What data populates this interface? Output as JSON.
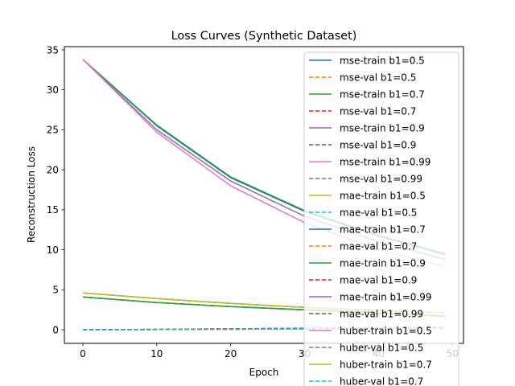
{
  "chart_data": {
    "type": "line",
    "title": "Loss Curves (Synthetic Dataset)",
    "xlabel": "Epoch",
    "ylabel": "Reconstruction Loss",
    "xlim": [
      -2.5,
      51.5
    ],
    "ylim": [
      -1.7,
      35.4
    ],
    "xticks": [
      0,
      10,
      20,
      30,
      40,
      50
    ],
    "yticks": [
      0,
      5,
      10,
      15,
      20,
      25,
      30,
      35
    ],
    "grid": false,
    "legend_position": "top-right",
    "series": [
      {
        "name": "mse-train b1=0.5",
        "color": "#1f77b4",
        "style": "solid",
        "x": [
          0,
          10,
          20,
          30,
          40,
          49
        ],
        "values": [
          33.8,
          25.6,
          19.1,
          14.9,
          11.8,
          9.5
        ]
      },
      {
        "name": "mse-val b1=0.5",
        "color": "#ff7f0e",
        "style": "dashed",
        "x": [
          0,
          10,
          20,
          30,
          40,
          49
        ],
        "values": [
          0.0,
          0.05,
          0.12,
          0.2,
          0.28,
          0.33
        ]
      },
      {
        "name": "mse-train b1=0.7",
        "color": "#2ca02c",
        "style": "solid",
        "x": [
          0,
          10,
          20,
          30,
          40,
          49
        ],
        "values": [
          33.8,
          25.5,
          19.0,
          14.8,
          11.7,
          9.4
        ]
      },
      {
        "name": "mse-val b1=0.7",
        "color": "#d62728",
        "style": "dashed",
        "x": [
          0,
          10,
          20,
          30,
          40,
          49
        ],
        "values": [
          0.0,
          0.05,
          0.12,
          0.2,
          0.27,
          0.32
        ]
      },
      {
        "name": "mse-train b1=0.9",
        "color": "#9467bd",
        "style": "solid",
        "x": [
          0,
          10,
          20,
          30,
          40,
          49
        ],
        "values": [
          33.8,
          25.0,
          18.6,
          14.2,
          11.0,
          8.8
        ]
      },
      {
        "name": "mse-val b1=0.9",
        "color": "#8c564b",
        "style": "dashed",
        "x": [
          0,
          10,
          20,
          30,
          40,
          49
        ],
        "values": [
          0.0,
          0.05,
          0.11,
          0.19,
          0.26,
          0.31
        ]
      },
      {
        "name": "mse-train b1=0.99",
        "color": "#e377c2",
        "style": "solid",
        "x": [
          0,
          10,
          20,
          30,
          40,
          49
        ],
        "values": [
          33.8,
          24.7,
          18.0,
          13.4,
          10.0,
          7.9
        ]
      },
      {
        "name": "mse-val b1=0.99",
        "color": "#7f7f7f",
        "style": "dashed",
        "x": [
          0,
          10,
          20,
          30,
          40,
          49
        ],
        "values": [
          0.0,
          0.05,
          0.11,
          0.18,
          0.25,
          0.3
        ]
      },
      {
        "name": "mae-train b1=0.5",
        "color": "#bcbd22",
        "style": "solid",
        "x": [
          0,
          10,
          20,
          30,
          40,
          49
        ],
        "values": [
          4.1,
          3.4,
          2.9,
          2.5,
          2.1,
          1.7
        ]
      },
      {
        "name": "mae-val b1=0.5",
        "color": "#17becf",
        "style": "dashed",
        "x": [
          0,
          10,
          20,
          30,
          40,
          49
        ],
        "values": [
          0.0,
          0.03,
          0.07,
          0.12,
          0.17,
          0.21
        ]
      },
      {
        "name": "mae-train b1=0.7",
        "color": "#1f77b4",
        "style": "solid",
        "x": [
          0,
          10,
          20,
          30,
          40,
          49
        ],
        "values": [
          4.1,
          3.4,
          2.9,
          2.5,
          2.1,
          1.7
        ]
      },
      {
        "name": "mae-val b1=0.7",
        "color": "#ff7f0e",
        "style": "dashed",
        "x": [
          0,
          10,
          20,
          30,
          40,
          49
        ],
        "values": [
          0.0,
          0.03,
          0.07,
          0.12,
          0.17,
          0.21
        ]
      },
      {
        "name": "mae-train b1=0.9",
        "color": "#2ca02c",
        "style": "solid",
        "x": [
          0,
          10,
          20,
          30,
          40,
          49
        ],
        "values": [
          4.1,
          3.4,
          2.9,
          2.5,
          2.1,
          1.7
        ]
      },
      {
        "name": "mae-val b1=0.9",
        "color": "#d62728",
        "style": "dashed",
        "x": [
          0,
          10,
          20,
          30,
          40,
          49
        ],
        "values": [
          0.0,
          0.03,
          0.07,
          0.12,
          0.17,
          0.21
        ]
      },
      {
        "name": "mae-train b1=0.99",
        "color": "#9467bd",
        "style": "solid",
        "x": [
          0,
          10,
          20,
          30,
          40,
          49
        ],
        "values": [
          4.6,
          3.9,
          3.3,
          2.8,
          2.4,
          2.1
        ]
      },
      {
        "name": "mae-val b1=0.99",
        "color": "#8c564b",
        "style": "dashed",
        "x": [
          0,
          10,
          20,
          30,
          40,
          49
        ],
        "values": [
          0.0,
          0.03,
          0.07,
          0.12,
          0.17,
          0.21
        ]
      },
      {
        "name": "huber-train b1=0.5",
        "color": "#e377c2",
        "style": "solid",
        "x": [
          0,
          10,
          20,
          30,
          40,
          49
        ],
        "values": [
          4.6,
          3.9,
          3.3,
          2.8,
          2.4,
          2.1
        ]
      },
      {
        "name": "huber-val b1=0.5",
        "color": "#7f7f7f",
        "style": "dashed",
        "x": [
          0,
          10,
          20,
          30,
          40,
          49
        ],
        "values": [
          0.0,
          0.03,
          0.07,
          0.12,
          0.17,
          0.21
        ]
      },
      {
        "name": "huber-train b1=0.7",
        "color": "#bcbd22",
        "style": "solid",
        "x": [
          0,
          10,
          20,
          30,
          40,
          49
        ],
        "values": [
          4.6,
          3.9,
          3.3,
          2.8,
          2.4,
          2.1
        ]
      },
      {
        "name": "huber-val b1=0.7",
        "color": "#17becf",
        "style": "dashed",
        "x": [
          0,
          10,
          20,
          30,
          40,
          49
        ],
        "values": [
          0.0,
          0.03,
          0.07,
          0.12,
          0.17,
          0.21
        ]
      }
    ]
  }
}
